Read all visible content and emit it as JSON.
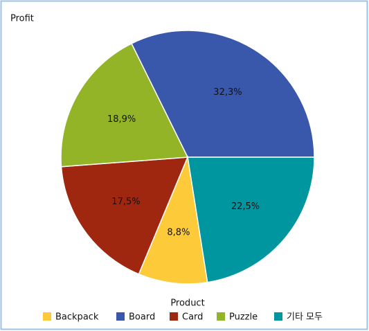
{
  "chart_data": {
    "type": "pie",
    "title": "Profit",
    "legend_title": "Product",
    "categories": [
      "Board",
      "기타 모두",
      "Backpack",
      "Card",
      "Puzzle"
    ],
    "values": [
      32.3,
      22.5,
      8.8,
      17.5,
      18.9
    ],
    "value_labels": [
      "32,3%",
      "22,5%",
      "8,8%",
      "17,5%",
      "18,9%"
    ],
    "colors": [
      "#3a58ab",
      "#00969f",
      "#fdca3a",
      "#a0270f",
      "#94b428"
    ],
    "legend": "bottom"
  }
}
